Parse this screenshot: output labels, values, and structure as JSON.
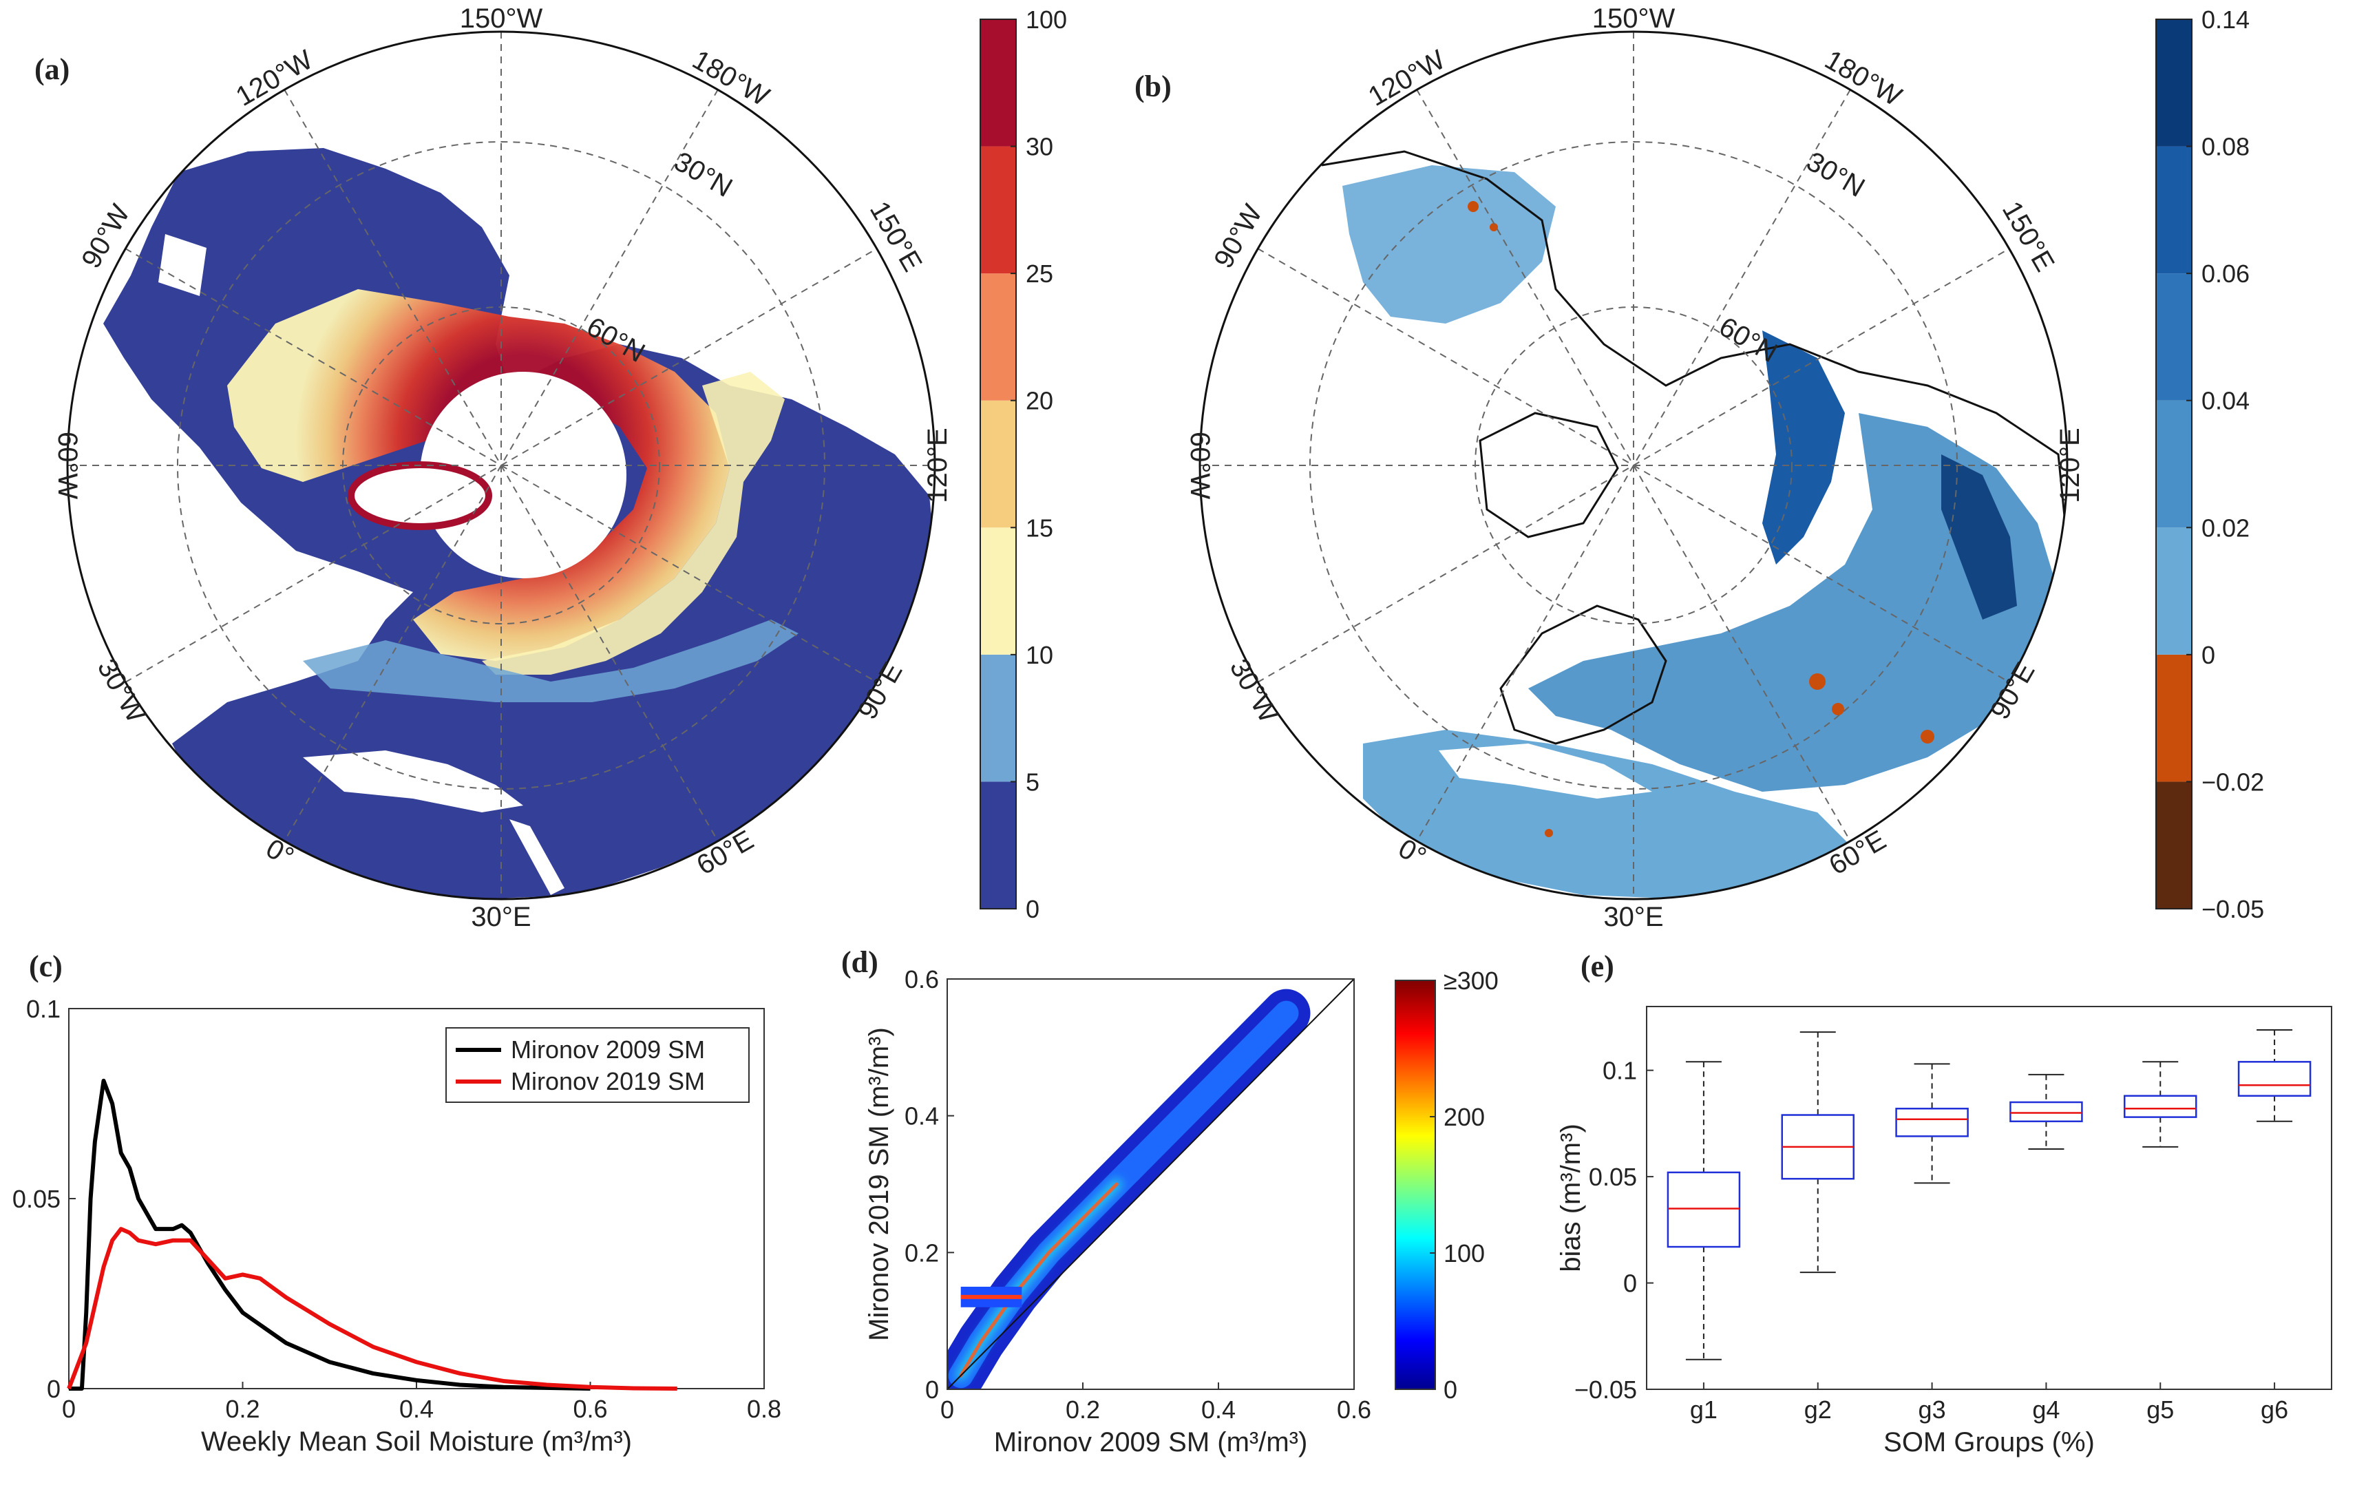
{
  "panels": {
    "a": {
      "label": "(a)",
      "colorbar": {
        "ticks": [
          "0",
          "5",
          "10",
          "15",
          "20",
          "25",
          "30",
          "100"
        ],
        "colors": [
          "#343f98",
          "#6fa6d3",
          "#fbf3b5",
          "#f6cd7f",
          "#f2875a",
          "#d7352b",
          "#a70d2d"
        ]
      }
    },
    "b": {
      "label": "(b)",
      "colorbar": {
        "ticks": [
          "−0.05",
          "−0.02",
          "0",
          "0.02",
          "0.04",
          "0.06",
          "0.08",
          "0.14"
        ],
        "colors": [
          "#5e2a0f",
          "#c94d0b",
          "#6aaad6",
          "#4a90c8",
          "#2d74b8",
          "#1a5ba6",
          "#0a3b78"
        ]
      }
    },
    "c": {
      "label": "(c)"
    },
    "d": {
      "label": "(d)"
    },
    "e": {
      "label": "(e)"
    }
  },
  "map_labels": {
    "lon_top": "150°W",
    "lon_120w": "120°W",
    "lon_180w": "180°W",
    "lon_90w": "90°W",
    "lon_150e": "150°E",
    "lon_60w": "60°W",
    "lon_120e": "120°E",
    "lon_30w": "30°W",
    "lon_90e": "90°E",
    "lon_0": "0°",
    "lon_60e": "60°E",
    "lon_30e": "30°E",
    "lat_30n": "30°N",
    "lat_60n": "60°N"
  },
  "chart_data": [
    {
      "panel": "c",
      "type": "line",
      "xlabel": "Weekly Mean Soil Moisture (m³/m³)",
      "ylabel": "",
      "xlim": [
        0,
        0.8
      ],
      "ylim": [
        0,
        0.1
      ],
      "xticks": [
        "0",
        "0.2",
        "0.4",
        "0.6",
        "0.8"
      ],
      "yticks": [
        "0",
        "0.05",
        "0.1"
      ],
      "legend": "top-right",
      "series": [
        {
          "name": "Mironov 2009 SM",
          "color": "#000000",
          "x": [
            0,
            0.015,
            0.02,
            0.025,
            0.03,
            0.04,
            0.05,
            0.06,
            0.07,
            0.08,
            0.1,
            0.12,
            0.13,
            0.14,
            0.16,
            0.18,
            0.2,
            0.25,
            0.3,
            0.35,
            0.4,
            0.45,
            0.5,
            0.6
          ],
          "y": [
            0,
            0,
            0.02,
            0.05,
            0.065,
            0.081,
            0.075,
            0.062,
            0.058,
            0.05,
            0.042,
            0.042,
            0.043,
            0.041,
            0.033,
            0.026,
            0.02,
            0.012,
            0.007,
            0.004,
            0.0022,
            0.001,
            0.0004,
            0
          ]
        },
        {
          "name": "Mironov 2019 SM",
          "color": "#e8110f",
          "x": [
            0,
            0.01,
            0.02,
            0.03,
            0.04,
            0.05,
            0.06,
            0.07,
            0.08,
            0.1,
            0.12,
            0.14,
            0.16,
            0.18,
            0.2,
            0.22,
            0.25,
            0.3,
            0.35,
            0.4,
            0.45,
            0.5,
            0.55,
            0.6,
            0.65,
            0.7
          ],
          "y": [
            0,
            0.006,
            0.012,
            0.022,
            0.032,
            0.039,
            0.042,
            0.041,
            0.039,
            0.038,
            0.039,
            0.039,
            0.034,
            0.029,
            0.03,
            0.029,
            0.024,
            0.017,
            0.011,
            0.007,
            0.004,
            0.002,
            0.001,
            0.0004,
            0.0001,
            0
          ]
        }
      ]
    },
    {
      "panel": "d",
      "type": "heatmap",
      "xlabel": "Mironov 2009 SM (m³/m³)",
      "ylabel": "Mironov 2019 SM (m³/m³)",
      "xlim": [
        0,
        0.6
      ],
      "ylim": [
        0,
        0.6
      ],
      "xticks": [
        "0",
        "0.2",
        "0.4",
        "0.6"
      ],
      "yticks": [
        "0",
        "0.2",
        "0.4",
        "0.6"
      ],
      "colorbar": {
        "min": 0,
        "max": 300,
        "ticks": [
          "0",
          "100",
          "200",
          "≥300"
        ]
      },
      "reference_line": "1:1",
      "ridge": {
        "x": [
          0.02,
          0.05,
          0.1,
          0.15,
          0.2,
          0.25,
          0.3,
          0.35,
          0.4,
          0.45,
          0.5
        ],
        "y": [
          0.02,
          0.07,
          0.14,
          0.2,
          0.25,
          0.3,
          0.35,
          0.4,
          0.45,
          0.5,
          0.55
        ]
      },
      "plateau": {
        "x": [
          0.02,
          0.11
        ],
        "y": [
          0.12,
          0.15
        ]
      }
    },
    {
      "panel": "e",
      "type": "box",
      "xlabel": "SOM Groups (%)",
      "ylabel": "bias (m³/m³)",
      "ylim": [
        -0.05,
        0.13
      ],
      "yticks": [
        "−0.05",
        "0",
        "0.05",
        "0.1"
      ],
      "categories": [
        "g1",
        "g2",
        "g3",
        "g4",
        "g5",
        "g6"
      ],
      "boxes": [
        {
          "min": -0.036,
          "q1": 0.017,
          "median": 0.035,
          "q3": 0.052,
          "max": 0.104
        },
        {
          "min": 0.005,
          "q1": 0.049,
          "median": 0.064,
          "q3": 0.079,
          "max": 0.118
        },
        {
          "min": 0.047,
          "q1": 0.069,
          "median": 0.077,
          "q3": 0.082,
          "max": 0.103
        },
        {
          "min": 0.063,
          "q1": 0.076,
          "median": 0.08,
          "q3": 0.085,
          "max": 0.098
        },
        {
          "min": 0.064,
          "q1": 0.078,
          "median": 0.082,
          "q3": 0.088,
          "max": 0.104
        },
        {
          "min": 0.076,
          "q1": 0.088,
          "median": 0.093,
          "q3": 0.104,
          "max": 0.119
        }
      ]
    }
  ]
}
